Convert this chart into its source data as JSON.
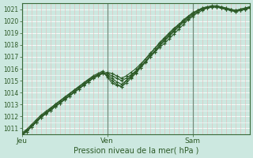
{
  "xlabel": "Pression niveau de la mer( hPa )",
  "bg_color": "#cce8e0",
  "plot_bg_color": "#cce8e0",
  "grid_major_color": "#ffffff",
  "grid_minor_v_color": "#e8b8b8",
  "grid_minor_h_color": "#ffffff",
  "line_color": "#2d5a27",
  "vline_color": "#7a8a7a",
  "axis_color": "#3a6a3a",
  "tick_color": "#2d5a27",
  "ylim": [
    1010.5,
    1021.5
  ],
  "xlim": [
    0,
    48
  ],
  "yticks": [
    1011,
    1012,
    1013,
    1014,
    1015,
    1016,
    1017,
    1018,
    1019,
    1020,
    1021
  ],
  "xtick_positions": [
    0,
    18,
    36
  ],
  "xtick_labels": [
    "Jeu",
    "Ven",
    "Sam"
  ],
  "vline_positions": [
    0,
    18,
    36
  ],
  "series": [
    [
      1010.5,
      1010.8,
      1011.1,
      1011.5,
      1011.9,
      1012.2,
      1012.5,
      1012.8,
      1013.1,
      1013.4,
      1013.7,
      1014.0,
      1014.3,
      1014.6,
      1014.9,
      1015.2,
      1015.4,
      1015.6,
      1015.5,
      1015.2,
      1014.9,
      1014.7,
      1015.0,
      1015.3,
      1015.7,
      1016.1,
      1016.5,
      1017.0,
      1017.4,
      1017.9,
      1018.3,
      1018.7,
      1019.1,
      1019.5,
      1019.9,
      1020.2,
      1020.5,
      1020.8,
      1021.0,
      1021.1,
      1021.2,
      1021.2,
      1021.1,
      1021.0,
      1020.9,
      1020.8,
      1020.9,
      1021.0,
      1021.1
    ],
    [
      1010.5,
      1010.8,
      1011.2,
      1011.6,
      1012.0,
      1012.3,
      1012.6,
      1012.9,
      1013.2,
      1013.5,
      1013.8,
      1014.1,
      1014.4,
      1014.7,
      1015.0,
      1015.3,
      1015.5,
      1015.7,
      1015.4,
      1015.0,
      1014.7,
      1014.5,
      1014.8,
      1015.2,
      1015.6,
      1016.1,
      1016.6,
      1017.1,
      1017.5,
      1018.0,
      1018.4,
      1018.8,
      1019.2,
      1019.6,
      1020.0,
      1020.3,
      1020.6,
      1020.9,
      1021.0,
      1021.1,
      1021.2,
      1021.2,
      1021.1,
      1021.0,
      1020.9,
      1020.8,
      1020.9,
      1021.0,
      1021.1
    ],
    [
      1010.5,
      1010.7,
      1011.2,
      1011.5,
      1012.0,
      1012.3,
      1012.6,
      1013.0,
      1013.3,
      1013.6,
      1013.9,
      1014.2,
      1014.5,
      1014.8,
      1015.1,
      1015.3,
      1015.5,
      1015.7,
      1015.6,
      1015.4,
      1015.2,
      1015.0,
      1015.2,
      1015.5,
      1015.8,
      1016.2,
      1016.6,
      1017.0,
      1017.4,
      1017.8,
      1018.1,
      1018.5,
      1018.9,
      1019.3,
      1019.7,
      1020.1,
      1020.4,
      1020.7,
      1020.9,
      1021.1,
      1021.2,
      1021.2,
      1021.2,
      1021.1,
      1021.0,
      1020.9,
      1020.9,
      1021.0,
      1021.1
    ],
    [
      1010.6,
      1010.9,
      1011.3,
      1011.7,
      1012.1,
      1012.4,
      1012.7,
      1013.0,
      1013.3,
      1013.6,
      1013.9,
      1014.2,
      1014.5,
      1014.8,
      1015.1,
      1015.4,
      1015.6,
      1015.8,
      1015.3,
      1014.8,
      1014.6,
      1014.5,
      1015.0,
      1015.4,
      1015.8,
      1016.3,
      1016.8,
      1017.3,
      1017.7,
      1018.2,
      1018.6,
      1019.0,
      1019.4,
      1019.7,
      1020.1,
      1020.4,
      1020.7,
      1020.9,
      1021.1,
      1021.2,
      1021.2,
      1021.2,
      1021.1,
      1021.0,
      1020.9,
      1020.9,
      1021.0,
      1021.1,
      1021.2
    ],
    [
      1010.4,
      1010.7,
      1011.1,
      1011.5,
      1011.9,
      1012.2,
      1012.5,
      1012.8,
      1013.1,
      1013.4,
      1013.7,
      1014.0,
      1014.3,
      1014.6,
      1014.9,
      1015.2,
      1015.4,
      1015.6,
      1015.7,
      1015.6,
      1015.4,
      1015.2,
      1015.4,
      1015.7,
      1016.0,
      1016.4,
      1016.8,
      1017.2,
      1017.7,
      1018.1,
      1018.5,
      1018.9,
      1019.3,
      1019.7,
      1020.0,
      1020.4,
      1020.7,
      1020.9,
      1021.1,
      1021.2,
      1021.3,
      1021.3,
      1021.2,
      1021.1,
      1021.0,
      1020.9,
      1021.0,
      1021.1,
      1021.2
    ]
  ],
  "marker": "+",
  "markersize": 3.5,
  "linewidth": 0.8,
  "xlabel_fontsize": 7,
  "ytick_fontsize": 5.5,
  "xtick_fontsize": 6.5
}
